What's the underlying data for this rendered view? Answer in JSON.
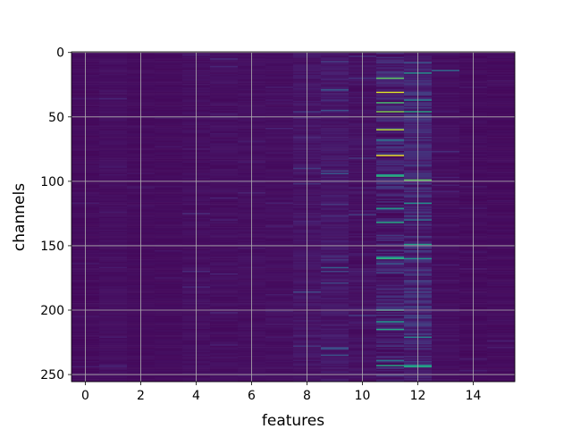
{
  "chart_data": {
    "type": "heatmap",
    "title": "",
    "xlabel": "features",
    "ylabel": "channels",
    "x_range": [
      -0.5,
      15.5
    ],
    "y_range": [
      -0.5,
      255.5
    ],
    "y_inverted": true,
    "n_columns": 16,
    "n_rows": 256,
    "x_ticks": [
      0,
      2,
      4,
      6,
      8,
      10,
      12,
      14
    ],
    "y_ticks": [
      0,
      50,
      100,
      150,
      200,
      250
    ],
    "grid": true,
    "colormap": "viridis",
    "colorbar": false,
    "column_base_level": [
      0.04,
      0.05,
      0.04,
      0.04,
      0.05,
      0.05,
      0.05,
      0.05,
      0.07,
      0.08,
      0.06,
      0.1,
      0.12,
      0.05,
      0.04,
      0.04
    ],
    "column_noise": [
      0.03,
      0.03,
      0.02,
      0.02,
      0.04,
      0.04,
      0.03,
      0.03,
      0.06,
      0.07,
      0.06,
      0.18,
      0.16,
      0.04,
      0.03,
      0.03
    ],
    "highlights": [
      {
        "col": 11,
        "row": 20,
        "value": 0.75
      },
      {
        "col": 11,
        "row": 31,
        "value": 0.95
      },
      {
        "col": 11,
        "row": 39,
        "value": 0.7
      },
      {
        "col": 11,
        "row": 46,
        "value": 0.8
      },
      {
        "col": 11,
        "row": 60,
        "value": 0.9
      },
      {
        "col": 11,
        "row": 80,
        "value": 0.98
      },
      {
        "col": 11,
        "row": 96,
        "value": 0.65
      },
      {
        "col": 11,
        "row": 160,
        "value": 0.65
      },
      {
        "col": 11,
        "row": 215,
        "value": 0.6
      },
      {
        "col": 11,
        "row": 243,
        "value": 0.6
      },
      {
        "col": 12,
        "row": 16,
        "value": 0.5
      },
      {
        "col": 12,
        "row": 46,
        "value": 0.6
      },
      {
        "col": 12,
        "row": 99,
        "value": 0.75
      },
      {
        "col": 12,
        "row": 117,
        "value": 0.5
      },
      {
        "col": 12,
        "row": 149,
        "value": 0.55
      },
      {
        "col": 12,
        "row": 160,
        "value": 0.5
      },
      {
        "col": 12,
        "row": 243,
        "value": 0.55
      },
      {
        "col": 13,
        "row": 14,
        "value": 0.35
      },
      {
        "col": 9,
        "row": 29,
        "value": 0.3
      },
      {
        "col": 9,
        "row": 167,
        "value": 0.3
      }
    ]
  }
}
